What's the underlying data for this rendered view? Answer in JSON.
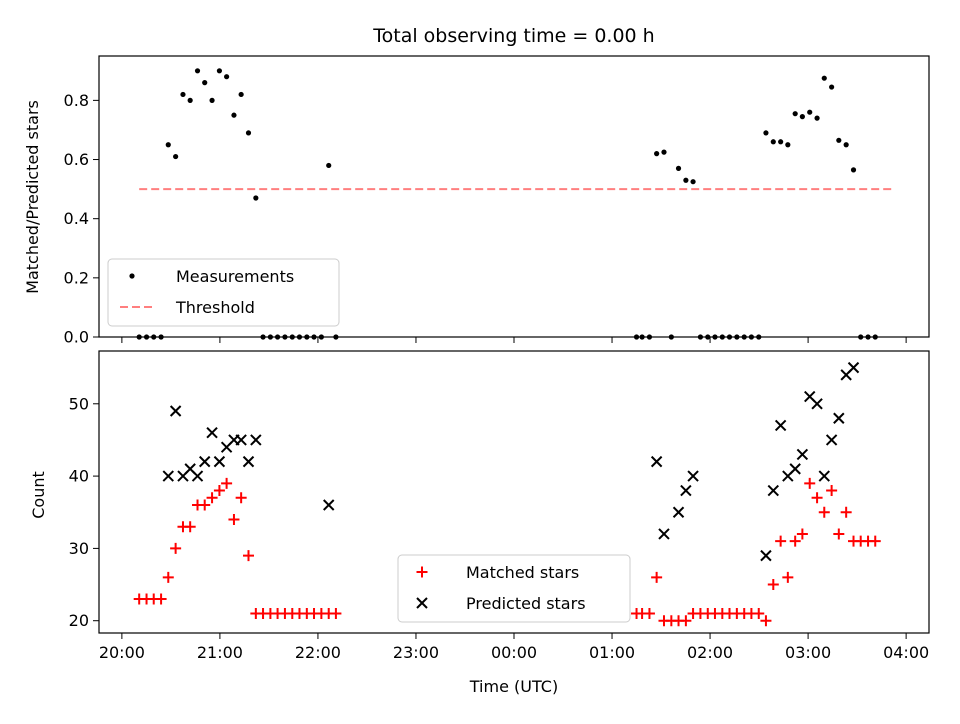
{
  "title": "Total observing time = 0.00 h",
  "chart_data": [
    {
      "type": "scatter",
      "ylabel": "Matched/Predicted stars",
      "xlabel": "",
      "ylim": [
        0,
        0.95
      ],
      "yticks": [
        0.0,
        0.2,
        0.4,
        0.6,
        0.8
      ],
      "ytick_labels": [
        "0.0",
        "0.2",
        "0.4",
        "0.6",
        "0.8"
      ],
      "legend_position": "lower-left",
      "series": [
        {
          "name": "Measurements",
          "marker": "dot",
          "color": "#000000",
          "points": [
            [
              -229.4,
              0.0
            ],
            [
              -224.9,
              0.0
            ],
            [
              -220.5,
              0.0
            ],
            [
              -216.0,
              0.0
            ],
            [
              -211.6,
              0.65
            ],
            [
              -207.1,
              0.61
            ],
            [
              -202.6,
              0.82
            ],
            [
              -198.2,
              0.8
            ],
            [
              -193.7,
              0.9
            ],
            [
              -189.3,
              0.86
            ],
            [
              -184.8,
              0.8
            ],
            [
              -180.3,
              0.9
            ],
            [
              -175.9,
              0.88
            ],
            [
              -171.4,
              0.75
            ],
            [
              -167.0,
              0.82
            ],
            [
              -162.5,
              0.69
            ],
            [
              -158.0,
              0.47
            ],
            [
              -153.6,
              0.0
            ],
            [
              -149.1,
              0.0
            ],
            [
              -144.7,
              0.0
            ],
            [
              -140.2,
              0.0
            ],
            [
              -135.7,
              0.0
            ],
            [
              -131.3,
              0.0
            ],
            [
              -126.8,
              0.0
            ],
            [
              -122.4,
              0.0
            ],
            [
              -117.9,
              0.0
            ],
            [
              -113.4,
              0.58
            ],
            [
              -109.0,
              0.0
            ],
            [
              75.0,
              0.0
            ],
            [
              78.4,
              0.0
            ],
            [
              82.9,
              0.0
            ],
            [
              87.3,
              0.62
            ],
            [
              91.8,
              0.625
            ],
            [
              96.3,
              0.0
            ],
            [
              100.7,
              0.57
            ],
            [
              105.2,
              0.53
            ],
            [
              109.6,
              0.525
            ],
            [
              114.1,
              0.0
            ],
            [
              118.6,
              0.0
            ],
            [
              123.0,
              0.0
            ],
            [
              127.5,
              0.0
            ],
            [
              131.9,
              0.0
            ],
            [
              136.4,
              0.0
            ],
            [
              140.9,
              0.0
            ],
            [
              145.3,
              0.0
            ],
            [
              149.8,
              0.0
            ],
            [
              154.2,
              0.69
            ],
            [
              158.7,
              0.66
            ],
            [
              163.2,
              0.66
            ],
            [
              167.6,
              0.65
            ],
            [
              172.1,
              0.755
            ],
            [
              176.5,
              0.745
            ],
            [
              181.0,
              0.76
            ],
            [
              185.5,
              0.74
            ],
            [
              189.9,
              0.875
            ],
            [
              194.4,
              0.845
            ],
            [
              198.8,
              0.665
            ],
            [
              203.3,
              0.65
            ],
            [
              207.8,
              0.565
            ],
            [
              212.2,
              0.0
            ],
            [
              216.7,
              0.0
            ],
            [
              221.1,
              0.0
            ]
          ]
        },
        {
          "name": "Threshold",
          "marker": "dashed-line",
          "color": "#ff7f7f",
          "points": [
            [
              -229.4,
              0.5
            ],
            [
              233.0,
              0.5
            ]
          ]
        }
      ]
    },
    {
      "type": "scatter",
      "ylabel": "Count",
      "xlabel": "Time (UTC)",
      "ylim": [
        18.3,
        57.3
      ],
      "yticks": [
        20,
        30,
        40,
        50
      ],
      "ytick_labels": [
        "20",
        "30",
        "40",
        "50"
      ],
      "xticks": [
        -240,
        -180,
        -120,
        -60,
        0,
        60,
        120,
        180,
        240
      ],
      "xtick_labels": [
        "20:00",
        "21:00",
        "22:00",
        "23:00",
        "00:00",
        "01:00",
        "02:00",
        "03:00",
        "04:00"
      ],
      "xlim": [
        -254,
        254
      ],
      "legend_position": "lower-center",
      "series": [
        {
          "name": "Matched stars",
          "marker": "plus",
          "color": "#ff0000",
          "points": [
            [
              -229.4,
              23
            ],
            [
              -224.9,
              23
            ],
            [
              -220.5,
              23
            ],
            [
              -216.0,
              23
            ],
            [
              -211.6,
              26
            ],
            [
              -207.1,
              30
            ],
            [
              -202.6,
              33
            ],
            [
              -198.2,
              33
            ],
            [
              -193.7,
              36
            ],
            [
              -189.3,
              36
            ],
            [
              -184.8,
              37
            ],
            [
              -180.3,
              38
            ],
            [
              -175.9,
              39
            ],
            [
              -171.4,
              34
            ],
            [
              -167.0,
              37
            ],
            [
              -162.5,
              29
            ],
            [
              -158.0,
              21
            ],
            [
              -153.6,
              21
            ],
            [
              -149.1,
              21
            ],
            [
              -144.7,
              21
            ],
            [
              -140.2,
              21
            ],
            [
              -135.7,
              21
            ],
            [
              -131.3,
              21
            ],
            [
              -126.8,
              21
            ],
            [
              -122.4,
              21
            ],
            [
              -117.9,
              21
            ],
            [
              -113.4,
              21
            ],
            [
              -109.0,
              21
            ],
            [
              75.0,
              21
            ],
            [
              78.4,
              21
            ],
            [
              82.9,
              21
            ],
            [
              87.3,
              26
            ],
            [
              91.8,
              20
            ],
            [
              96.3,
              20
            ],
            [
              100.7,
              20
            ],
            [
              105.2,
              20
            ],
            [
              109.6,
              21
            ],
            [
              114.1,
              21
            ],
            [
              118.6,
              21
            ],
            [
              123.0,
              21
            ],
            [
              127.5,
              21
            ],
            [
              131.9,
              21
            ],
            [
              136.4,
              21
            ],
            [
              140.9,
              21
            ],
            [
              145.3,
              21
            ],
            [
              149.8,
              21
            ],
            [
              154.2,
              20
            ],
            [
              158.7,
              25
            ],
            [
              163.2,
              31
            ],
            [
              167.6,
              26
            ],
            [
              172.1,
              31
            ],
            [
              176.5,
              32
            ],
            [
              181.0,
              39
            ],
            [
              185.5,
              37
            ],
            [
              189.9,
              35
            ],
            [
              194.4,
              38
            ],
            [
              198.8,
              32
            ],
            [
              203.3,
              35
            ],
            [
              207.8,
              31
            ],
            [
              212.2,
              31
            ],
            [
              216.7,
              31
            ],
            [
              221.1,
              31
            ]
          ]
        },
        {
          "name": "Predicted stars",
          "marker": "x",
          "color": "#000000",
          "points": [
            [
              -211.6,
              40
            ],
            [
              -207.1,
              49
            ],
            [
              -202.6,
              40
            ],
            [
              -198.2,
              41
            ],
            [
              -193.7,
              40
            ],
            [
              -189.3,
              42
            ],
            [
              -184.8,
              46
            ],
            [
              -180.3,
              42
            ],
            [
              -175.9,
              44
            ],
            [
              -171.4,
              45
            ],
            [
              -167.0,
              45
            ],
            [
              -162.5,
              42
            ],
            [
              -158.0,
              45
            ],
            [
              -113.4,
              36
            ],
            [
              87.3,
              42
            ],
            [
              91.8,
              32
            ],
            [
              100.7,
              35
            ],
            [
              105.2,
              38
            ],
            [
              109.6,
              40
            ],
            [
              154.2,
              29
            ],
            [
              158.7,
              38
            ],
            [
              163.2,
              47
            ],
            [
              167.6,
              40
            ],
            [
              172.1,
              41
            ],
            [
              176.5,
              43
            ],
            [
              181.0,
              51
            ],
            [
              185.5,
              50
            ],
            [
              189.9,
              40
            ],
            [
              194.4,
              45
            ],
            [
              198.8,
              48
            ],
            [
              203.3,
              54
            ],
            [
              207.8,
              55
            ]
          ]
        }
      ]
    }
  ]
}
